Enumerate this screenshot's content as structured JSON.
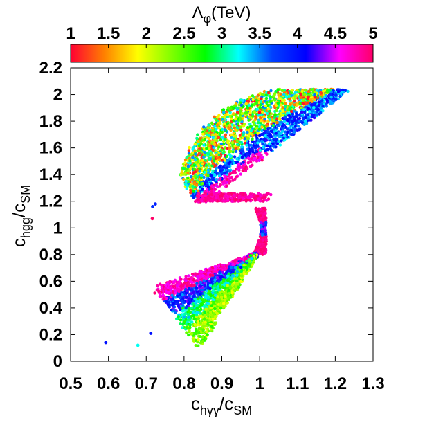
{
  "chart_data": {
    "type": "scatter",
    "title": "",
    "xlabel": {
      "main": "c",
      "sub": "hγγ",
      "sep": "/c",
      "sub2": "SM"
    },
    "ylabel": {
      "main": "c",
      "sub": "hgg",
      "sep": "/c",
      "sub2": "SM"
    },
    "colorbar": {
      "label_main": "Λ",
      "label_sub": "φ",
      "label_unit": "(TeV)",
      "range": [
        1,
        5
      ],
      "ticks": [
        "1",
        "1.5",
        "2",
        "2.5",
        "3",
        "3.5",
        "4",
        "4.5",
        "5"
      ],
      "tick_values": [
        1,
        1.5,
        2,
        2.5,
        3,
        3.5,
        4,
        4.5,
        5
      ],
      "colormap": [
        "#ff0033",
        "#ff8000",
        "#ffff00",
        "#80ff00",
        "#00ff00",
        "#00ffff",
        "#0040ff",
        "#0000ff",
        "#ff00ff",
        "#ff0066"
      ]
    },
    "xlim": [
      0.5,
      1.3
    ],
    "ylim": [
      0,
      2.2
    ],
    "x_ticks": [
      "0.5",
      "0.6",
      "0.7",
      "0.8",
      "0.9",
      "1",
      "1.1",
      "1.2",
      "1.3"
    ],
    "x_tick_values": [
      0.5,
      0.6,
      0.7,
      0.8,
      0.9,
      1.0,
      1.1,
      1.2,
      1.3
    ],
    "y_ticks": [
      "0",
      "0.2",
      "0.4",
      "0.6",
      "0.8",
      "1",
      "1.2",
      "1.4",
      "1.6",
      "1.8",
      "2",
      "2.2"
    ],
    "y_tick_values": [
      0,
      0.2,
      0.4,
      0.6,
      0.8,
      1.0,
      1.2,
      1.4,
      1.6,
      1.8,
      2.0,
      2.2
    ],
    "grid": false,
    "legend": "none",
    "regions": [
      {
        "name": "upper-band",
        "corners": [
          [
            0.83,
            1.45
          ],
          [
            1.23,
            2.03
          ],
          [
            1.13,
            1.38
          ],
          [
            0.84,
            1.22
          ]
        ],
        "lambda_mix": "mostly 1-3.5, with 4.5-5 at lower edge"
      },
      {
        "name": "neck",
        "points": [
          [
            1.0,
            1.14
          ],
          [
            1.02,
            1.05
          ],
          [
            1.01,
            0.9
          ],
          [
            0.99,
            0.8
          ]
        ],
        "lambda": 5
      },
      {
        "name": "lower-band",
        "corners": [
          [
            0.72,
            0.45
          ],
          [
            0.99,
            0.82
          ],
          [
            0.93,
            0.2
          ],
          [
            0.81,
            0.1
          ]
        ],
        "lambda_mix": "4.5-5 at upper edge, 2-3 toward bottom"
      }
    ],
    "outliers": [
      {
        "x": 0.593,
        "y": 0.14,
        "lambda": 4.0
      },
      {
        "x": 0.678,
        "y": 0.12,
        "lambda": 3.2
      },
      {
        "x": 0.712,
        "y": 0.21,
        "lambda": 4.0
      },
      {
        "x": 0.716,
        "y": 1.07,
        "lambda": 5.0
      },
      {
        "x": 0.717,
        "y": 1.16,
        "lambda": 3.8
      },
      {
        "x": 0.724,
        "y": 1.18,
        "lambda": 3.9
      }
    ]
  }
}
